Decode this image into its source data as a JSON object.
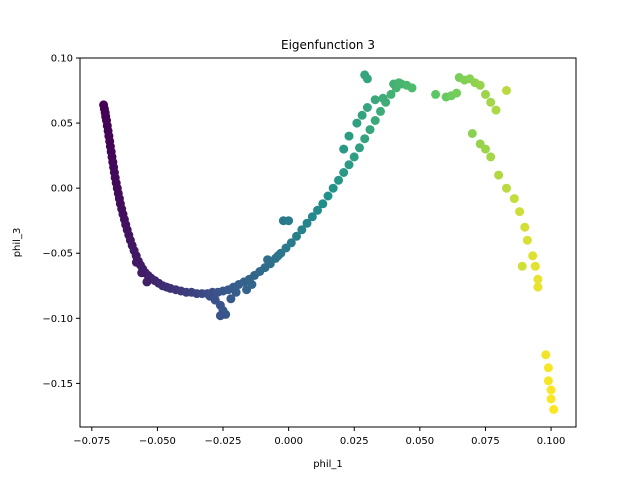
{
  "chart_data": {
    "type": "scatter",
    "title": "Eigenfunction 3",
    "xlabel": "phil_1",
    "ylabel": "phil_3",
    "xlim": [
      -0.0795,
      0.1095
    ],
    "ylim": [
      -0.1835,
      0.1
    ],
    "xticks": [
      -0.075,
      -0.05,
      -0.025,
      0.0,
      0.025,
      0.05,
      0.075,
      0.1
    ],
    "xtick_labels": [
      "−0.075",
      "−0.050",
      "−0.025",
      "0.000",
      "0.025",
      "0.050",
      "0.075",
      "0.100"
    ],
    "yticks": [
      -0.15,
      -0.1,
      -0.05,
      0.0,
      0.05,
      0.1
    ],
    "ytick_labels": [
      "−0.15",
      "−0.10",
      "−0.05",
      "0.00",
      "0.05",
      "0.10"
    ],
    "grid": false,
    "colormap": "viridis",
    "color_by": "x",
    "point_color_stops": [
      "#440154",
      "#3b528b",
      "#21918c",
      "#5ec962",
      "#fde725"
    ],
    "points": [
      [
        -0.0705,
        0.064
      ],
      [
        -0.0702,
        0.061
      ],
      [
        -0.0699,
        0.058
      ],
      [
        -0.0697,
        0.055
      ],
      [
        -0.0694,
        0.052
      ],
      [
        -0.0691,
        0.048
      ],
      [
        -0.0688,
        0.044
      ],
      [
        -0.0685,
        0.04
      ],
      [
        -0.0682,
        0.036
      ],
      [
        -0.0679,
        0.032
      ],
      [
        -0.0676,
        0.028
      ],
      [
        -0.0673,
        0.024
      ],
      [
        -0.067,
        0.02
      ],
      [
        -0.0667,
        0.016
      ],
      [
        -0.0664,
        0.012
      ],
      [
        -0.0661,
        0.008
      ],
      [
        -0.0657,
        0.004
      ],
      [
        -0.0653,
        0.0
      ],
      [
        -0.0649,
        -0.004
      ],
      [
        -0.0645,
        -0.008
      ],
      [
        -0.0641,
        -0.012
      ],
      [
        -0.0636,
        -0.016
      ],
      [
        -0.0631,
        -0.02
      ],
      [
        -0.0626,
        -0.024
      ],
      [
        -0.0621,
        -0.028
      ],
      [
        -0.0615,
        -0.032
      ],
      [
        -0.0609,
        -0.036
      ],
      [
        -0.0603,
        -0.04
      ],
      [
        -0.0596,
        -0.044
      ],
      [
        -0.0589,
        -0.048
      ],
      [
        -0.0581,
        -0.052
      ],
      [
        -0.0573,
        -0.056
      ],
      [
        -0.0565,
        -0.059
      ],
      [
        -0.0556,
        -0.062
      ],
      [
        -0.0546,
        -0.065
      ],
      [
        -0.0536,
        -0.067
      ],
      [
        -0.0525,
        -0.069
      ],
      [
        -0.051,
        -0.071
      ],
      [
        -0.0495,
        -0.073
      ],
      [
        -0.048,
        -0.075
      ],
      [
        -0.0465,
        -0.076
      ],
      [
        -0.045,
        -0.077
      ],
      [
        -0.043,
        -0.078
      ],
      [
        -0.041,
        -0.079
      ],
      [
        -0.039,
        -0.08
      ],
      [
        -0.037,
        -0.08
      ],
      [
        -0.035,
        -0.081
      ],
      [
        -0.033,
        -0.081
      ],
      [
        -0.031,
        -0.081
      ],
      [
        -0.029,
        -0.08
      ],
      [
        -0.027,
        -0.08
      ],
      [
        -0.025,
        -0.079
      ],
      [
        -0.023,
        -0.078
      ],
      [
        -0.021,
        -0.076
      ],
      [
        -0.019,
        -0.074
      ],
      [
        -0.017,
        -0.072
      ],
      [
        -0.015,
        -0.07
      ],
      [
        -0.013,
        -0.067
      ],
      [
        -0.011,
        -0.064
      ],
      [
        -0.009,
        -0.061
      ],
      [
        -0.007,
        -0.058
      ],
      [
        -0.005,
        -0.054
      ],
      [
        -0.003,
        -0.05
      ],
      [
        -0.001,
        -0.046
      ],
      [
        0.001,
        -0.042
      ],
      [
        0.003,
        -0.037
      ],
      [
        0.005,
        -0.032
      ],
      [
        0.007,
        -0.027
      ],
      [
        0.009,
        -0.022
      ],
      [
        0.011,
        -0.017
      ],
      [
        0.013,
        -0.012
      ],
      [
        0.015,
        -0.006
      ],
      [
        0.017,
        0.0
      ],
      [
        0.019,
        0.006
      ],
      [
        0.021,
        0.012
      ],
      [
        0.023,
        0.018
      ],
      [
        0.025,
        0.024
      ],
      [
        0.027,
        0.031
      ],
      [
        0.029,
        0.038
      ],
      [
        0.031,
        0.045
      ],
      [
        0.033,
        0.052
      ],
      [
        0.035,
        0.059
      ],
      [
        0.037,
        0.066
      ],
      [
        0.039,
        0.072
      ],
      [
        0.041,
        0.077
      ],
      [
        0.043,
        0.08
      ],
      [
        0.045,
        0.079
      ],
      [
        0.047,
        0.077
      ],
      [
        -0.058,
        -0.057
      ],
      [
        -0.056,
        -0.065
      ],
      [
        -0.054,
        -0.072
      ],
      [
        -0.03,
        -0.083
      ],
      [
        -0.028,
        -0.086
      ],
      [
        -0.026,
        -0.09
      ],
      [
        -0.025,
        -0.094
      ],
      [
        -0.024,
        -0.097
      ],
      [
        -0.026,
        -0.098
      ],
      [
        -0.022,
        -0.085
      ],
      [
        -0.02,
        -0.08
      ],
      [
        -0.016,
        -0.078
      ],
      [
        -0.014,
        -0.074
      ],
      [
        -0.008,
        -0.055
      ],
      [
        -0.004,
        -0.052
      ],
      [
        -0.002,
        -0.025
      ],
      [
        0.0,
        -0.025
      ],
      [
        0.021,
        0.03
      ],
      [
        0.023,
        0.04
      ],
      [
        0.026,
        0.05
      ],
      [
        0.028,
        0.056
      ],
      [
        0.03,
        0.062
      ],
      [
        0.029,
        0.087
      ],
      [
        0.03,
        0.084
      ],
      [
        0.033,
        0.068
      ],
      [
        0.036,
        0.069
      ],
      [
        0.04,
        0.08
      ],
      [
        0.042,
        0.081
      ],
      [
        0.056,
        0.072
      ],
      [
        0.06,
        0.07
      ],
      [
        0.062,
        0.071
      ],
      [
        0.064,
        0.073
      ],
      [
        0.065,
        0.085
      ],
      [
        0.067,
        0.083
      ],
      [
        0.069,
        0.084
      ],
      [
        0.071,
        0.081
      ],
      [
        0.073,
        0.079
      ],
      [
        0.075,
        0.072
      ],
      [
        0.077,
        0.066
      ],
      [
        0.079,
        0.06
      ],
      [
        0.083,
        0.075
      ],
      [
        0.07,
        0.042
      ],
      [
        0.073,
        0.034
      ],
      [
        0.075,
        0.03
      ],
      [
        0.077,
        0.024
      ],
      [
        0.08,
        0.01
      ],
      [
        0.083,
        0.0
      ],
      [
        0.086,
        -0.008
      ],
      [
        0.088,
        -0.018
      ],
      [
        0.09,
        -0.03
      ],
      [
        0.091,
        -0.04
      ],
      [
        0.093,
        -0.052
      ],
      [
        0.094,
        -0.06
      ],
      [
        0.095,
        -0.07
      ],
      [
        0.095,
        -0.076
      ],
      [
        0.089,
        -0.06
      ],
      [
        0.098,
        -0.128
      ],
      [
        0.099,
        -0.138
      ],
      [
        0.099,
        -0.148
      ],
      [
        0.1,
        -0.155
      ],
      [
        0.1,
        -0.162
      ],
      [
        0.101,
        -0.17
      ]
    ]
  }
}
